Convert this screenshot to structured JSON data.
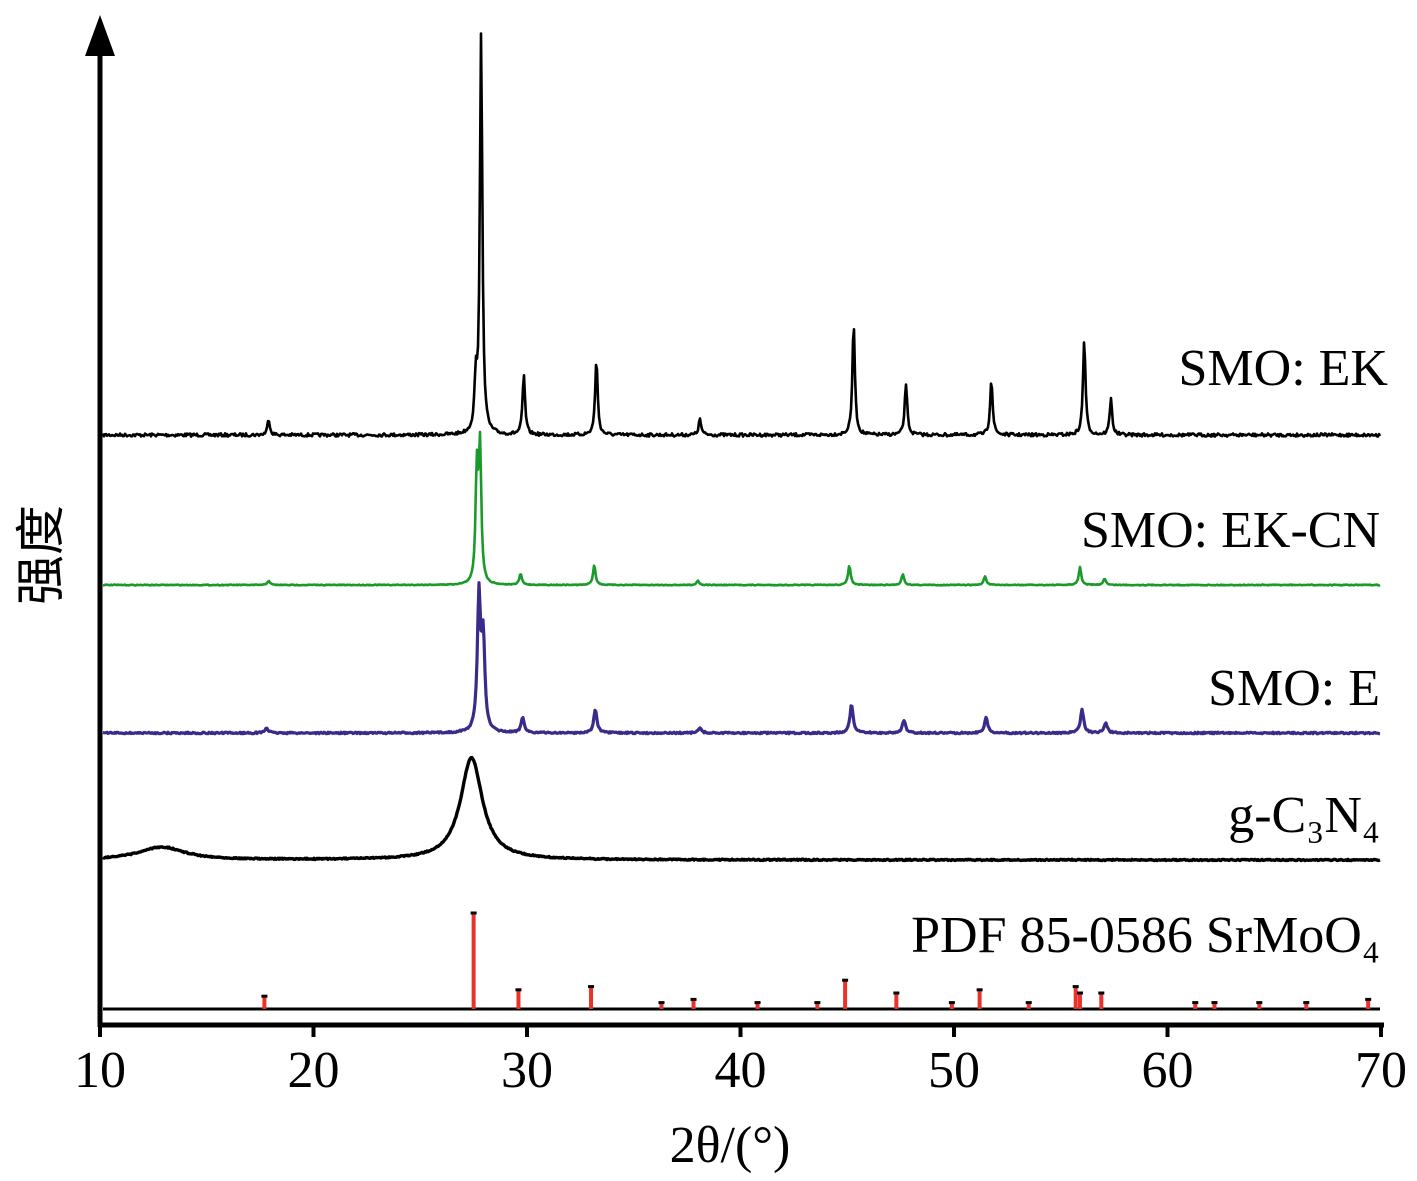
{
  "chart_data": {
    "type": "line",
    "xlabel": "2θ/(°)",
    "ylabel": "强度",
    "xlim": [
      10,
      70
    ],
    "xticks": [
      10,
      20,
      30,
      40,
      50,
      60,
      70
    ],
    "grid": false,
    "series": [
      {
        "name": "SMO: EK",
        "color": "#000000",
        "peaks": [
          {
            "x": 17.9,
            "h": 0.04
          },
          {
            "x": 27.6,
            "h": 0.12
          },
          {
            "x": 27.85,
            "h": 1.0
          },
          {
            "x": 29.85,
            "h": 0.15
          },
          {
            "x": 33.25,
            "h": 0.19
          },
          {
            "x": 38.1,
            "h": 0.04
          },
          {
            "x": 45.3,
            "h": 0.28
          },
          {
            "x": 47.75,
            "h": 0.13
          },
          {
            "x": 51.75,
            "h": 0.14
          },
          {
            "x": 56.1,
            "h": 0.24
          },
          {
            "x": 57.35,
            "h": 0.09
          }
        ]
      },
      {
        "name": "SMO: EK-CN",
        "color": "#1a9a2a",
        "peaks": [
          {
            "x": 17.9,
            "h": 0.02
          },
          {
            "x": 27.65,
            "h": 0.5
          },
          {
            "x": 27.8,
            "h": 0.6
          },
          {
            "x": 29.7,
            "h": 0.05
          },
          {
            "x": 33.15,
            "h": 0.09
          },
          {
            "x": 38.0,
            "h": 0.02
          },
          {
            "x": 45.1,
            "h": 0.09
          },
          {
            "x": 47.6,
            "h": 0.05
          },
          {
            "x": 51.45,
            "h": 0.04
          },
          {
            "x": 55.9,
            "h": 0.08
          },
          {
            "x": 57.05,
            "h": 0.03
          }
        ]
      },
      {
        "name": "SMO: E",
        "color": "#3a2a8a",
        "peaks": [
          {
            "x": 17.8,
            "h": 0.02
          },
          {
            "x": 27.75,
            "h": 0.52
          },
          {
            "x": 27.95,
            "h": 0.35
          },
          {
            "x": 29.8,
            "h": 0.06
          },
          {
            "x": 33.2,
            "h": 0.09
          },
          {
            "x": 38.1,
            "h": 0.02
          },
          {
            "x": 45.2,
            "h": 0.11
          },
          {
            "x": 47.65,
            "h": 0.05
          },
          {
            "x": 51.5,
            "h": 0.06
          },
          {
            "x": 56.0,
            "h": 0.09
          },
          {
            "x": 57.1,
            "h": 0.04
          }
        ]
      },
      {
        "name": "g-C₃N₄",
        "color": "#000000",
        "peaks": [
          {
            "x": 12.9,
            "h": 0.04
          },
          {
            "x": 27.4,
            "h": 0.32
          }
        ]
      },
      {
        "name": "PDF 85-0586  SrMoO₄",
        "color": "#e8322a",
        "type": "stick",
        "sticks": [
          {
            "x": 17.7,
            "h": 0.04
          },
          {
            "x": 27.5,
            "h": 0.3
          },
          {
            "x": 29.6,
            "h": 0.06
          },
          {
            "x": 33.0,
            "h": 0.07
          },
          {
            "x": 36.3,
            "h": 0.02
          },
          {
            "x": 37.8,
            "h": 0.03
          },
          {
            "x": 40.8,
            "h": 0.02
          },
          {
            "x": 43.6,
            "h": 0.02
          },
          {
            "x": 44.9,
            "h": 0.09
          },
          {
            "x": 47.3,
            "h": 0.05
          },
          {
            "x": 49.9,
            "h": 0.02
          },
          {
            "x": 51.2,
            "h": 0.06
          },
          {
            "x": 53.5,
            "h": 0.02
          },
          {
            "x": 55.7,
            "h": 0.07
          },
          {
            "x": 55.9,
            "h": 0.05
          },
          {
            "x": 56.9,
            "h": 0.05
          },
          {
            "x": 61.3,
            "h": 0.02
          },
          {
            "x": 62.2,
            "h": 0.02
          },
          {
            "x": 64.3,
            "h": 0.02
          },
          {
            "x": 66.5,
            "h": 0.02
          },
          {
            "x": 69.4,
            "h": 0.03
          }
        ]
      }
    ]
  }
}
